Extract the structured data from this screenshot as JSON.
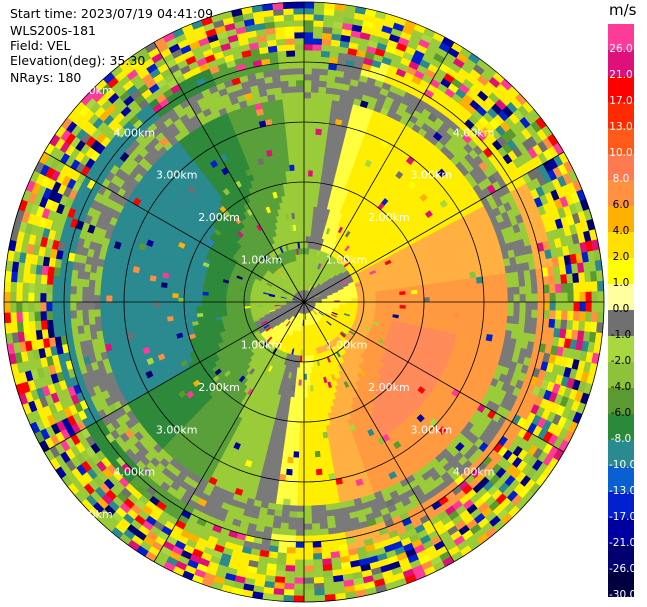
{
  "info": {
    "start_time": "Start time: 2023/07/19 04:41:09",
    "instrument": "WLS200s-181",
    "field": "Field: VEL",
    "elevation": "Elevation(deg): 35.30",
    "nrays": "NRays: 180"
  },
  "colorbar": {
    "unit": "m/s",
    "ticks": [
      "26.0",
      "21.0",
      "17.0",
      "13.0",
      "10.0",
      "8.0",
      "6.0",
      "4.0",
      "2.0",
      "1.0",
      "0.0",
      "-1.0",
      "-2.0",
      "-4.0",
      "-6.0",
      "-8.0",
      "-10.0",
      "-13.0",
      "-17.0",
      "-21.0",
      "-26.0",
      "-30.0"
    ],
    "colors": [
      "#ff3b9a",
      "#e0107a",
      "#ff0000",
      "#ff2a00",
      "#ff5a1a",
      "#ff7a50",
      "#ff9040",
      "#ffb000",
      "#ffe000",
      "#ffff00",
      "#ffffa0",
      "#707070",
      "#a8d840",
      "#8ec23a",
      "#5a9a30",
      "#2a8a3a",
      "#2a8a90",
      "#0a60d0",
      "#0020d0",
      "#0000a0",
      "#000070",
      "#000040"
    ]
  },
  "range_labels": [
    "1.00km",
    "2.00km",
    "3.00km",
    "4.00km",
    "5.00km"
  ],
  "palette": {
    "blue": "#2a80c8",
    "teal": "#2a8a90",
    "green_dark": "#2e8a3a",
    "green": "#5aa03a",
    "green_light": "#9acc3a",
    "gray": "#7a7a7a",
    "yellow": "#ffee00",
    "yellow_light": "#ffff40",
    "orange_light": "#ffb040",
    "orange": "#ff9a40",
    "salmon": "#ff8a5a"
  }
}
